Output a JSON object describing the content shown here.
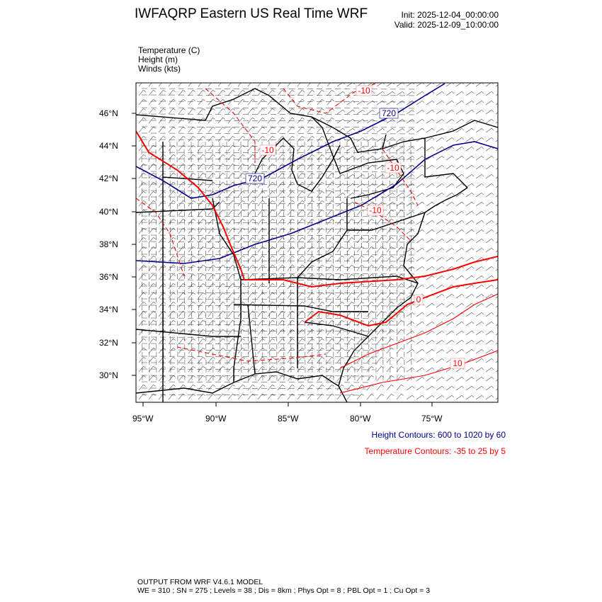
{
  "header": {
    "title": "IWFAQRP Eastern US Real Time WRF",
    "init": "Init: 2025-12-04_00:00:00",
    "valid": "Valid: 2025-12-09_10:00:00"
  },
  "fields": [
    {
      "label": "Temperature   (C)"
    },
    {
      "label": "Height   (m)"
    },
    {
      "label": "Winds   (kts)"
    }
  ],
  "map": {
    "lat_ticks": [
      "46°N",
      "44°N",
      "42°N",
      "40°N",
      "38°N",
      "36°N",
      "34°N",
      "32°N",
      "30°N"
    ],
    "lon_ticks": [
      "95°W",
      "90°W",
      "85°W",
      "80°W",
      "75°W"
    ],
    "height_labels": [
      "720",
      "720"
    ],
    "temperature_labels": [
      "-10",
      "-10",
      "-10",
      "-10",
      "0",
      "10"
    ],
    "colors": {
      "height": "#00008b",
      "temperature": "#ff0000",
      "boundaries": "#000000",
      "barbs": "#000000"
    }
  },
  "legend": {
    "height": "Height Contours: 600 to 1020 by 60",
    "temperature": "Temperature Contours: -35 to 25 by 5"
  },
  "footer": {
    "line1": "OUTPUT FROM WRF V4.6.1 MODEL",
    "line2": "WE = 310 ; SN = 275 ; Levels = 38 ; Dis = 8km ; Phys Opt = 8 ; PBL Opt = 1 ; Cu Opt = 3"
  }
}
